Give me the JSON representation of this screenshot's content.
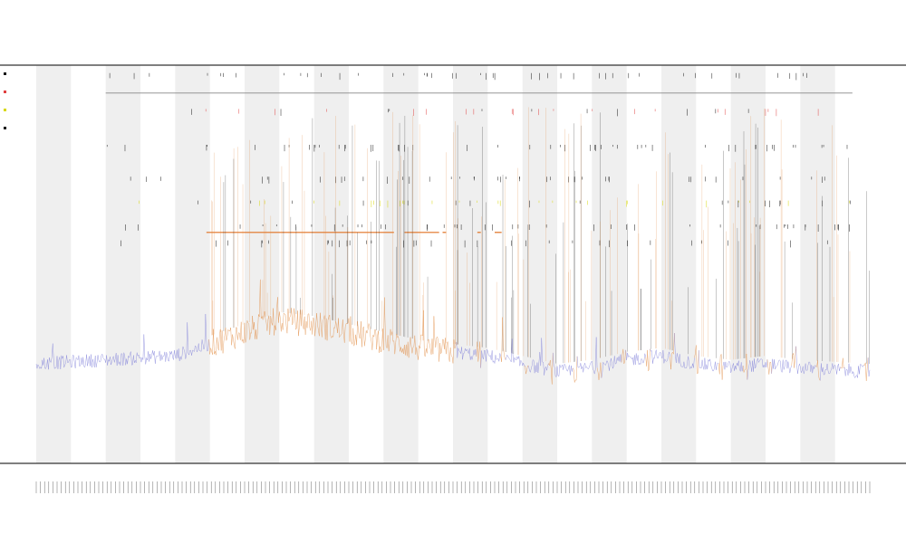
{
  "chart_data": {
    "type": "line",
    "title": "",
    "subtitle": "",
    "xlabel": "",
    "ylabel": "",
    "x_range": [
      0,
      240
    ],
    "y_range": [
      0,
      100
    ],
    "grid": false,
    "shaded_bands": true,
    "band_count": 24,
    "colors": {
      "series_low": "#7b7bd8",
      "series_high": "#e08a40",
      "threshold_line": "#e07020",
      "ref_line": "#888888",
      "marker_black": "#111111",
      "marker_red": "#e04040",
      "marker_yellow": "#d8d800",
      "band_fill": "#efefef",
      "axis": "#333333"
    },
    "series": [
      {
        "name": "",
        "color_low": "#7b7bd8",
        "color_high": "#e08a40",
        "baseline_profile": [
          [
            0,
            25
          ],
          [
            20,
            26
          ],
          [
            40,
            27
          ],
          [
            50,
            30
          ],
          [
            60,
            33
          ],
          [
            70,
            36
          ],
          [
            80,
            35
          ],
          [
            90,
            33
          ],
          [
            100,
            31
          ],
          [
            110,
            29
          ],
          [
            120,
            28
          ],
          [
            130,
            27
          ],
          [
            140,
            25
          ],
          [
            150,
            23
          ],
          [
            160,
            24
          ],
          [
            170,
            26
          ],
          [
            180,
            27
          ],
          [
            190,
            25
          ],
          [
            200,
            24
          ],
          [
            210,
            25
          ],
          [
            220,
            24
          ],
          [
            240,
            23
          ]
        ],
        "elevated_range": [
          50,
          120
        ]
      }
    ],
    "threshold_segments": [
      {
        "y": 58,
        "x_start": 49,
        "x_end": 103
      },
      {
        "y": 58,
        "x_start": 106,
        "x_end": 116
      },
      {
        "y": 58,
        "x_start": 117,
        "x_end": 118
      },
      {
        "y": 58,
        "x_start": 127,
        "x_end": 128
      },
      {
        "y": 58,
        "x_start": 132,
        "x_end": 134
      }
    ],
    "reference_line": {
      "y": 93,
      "x_start": 20,
      "x_end": 235
    },
    "legend": {
      "position": "top-left",
      "entries": []
    }
  }
}
